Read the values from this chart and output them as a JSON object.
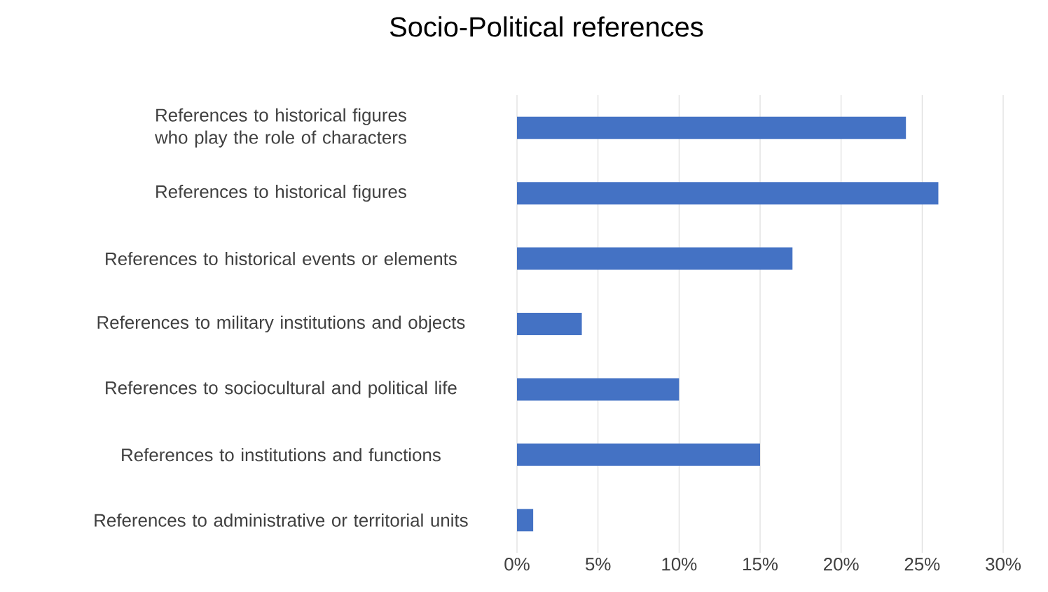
{
  "chart_data": {
    "type": "bar",
    "orientation": "horizontal",
    "title": "Socio-Political references",
    "categories": [
      "References to historical figures who play the role of characters",
      "References to historical figures",
      "References to historical events or elements",
      "References to military institutions and objects",
      "References to sociocultural and political life",
      "References to institutions and functions",
      "References to administrative or territorial units"
    ],
    "values": [
      24,
      26,
      17,
      4,
      10,
      15,
      1
    ],
    "color": "#4472c4",
    "xlim": [
      0,
      30
    ],
    "xticks": [
      {
        "value": 0,
        "label": "0%"
      },
      {
        "value": 5,
        "label": "5%"
      },
      {
        "value": 10,
        "label": "10%"
      },
      {
        "value": 15,
        "label": "15%"
      },
      {
        "value": 20,
        "label": "20%"
      },
      {
        "value": 25,
        "label": "25%"
      },
      {
        "value": 30,
        "label": "30%"
      }
    ],
    "grid": "x"
  }
}
